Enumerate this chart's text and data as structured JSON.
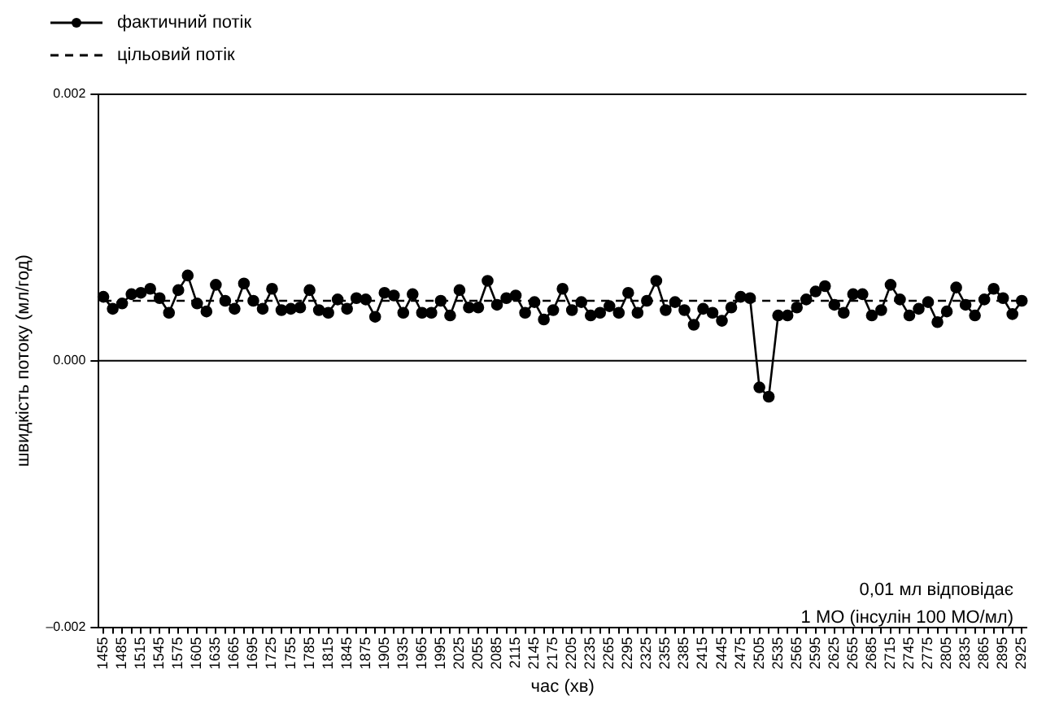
{
  "chart_data": {
    "type": "line",
    "xlabel": "час (хв)",
    "ylabel": "швидкість потоку (мл/год)",
    "categories": [
      "1455",
      null,
      "1485",
      null,
      "1515",
      null,
      "1545",
      null,
      "1575",
      null,
      "1605",
      null,
      "1635",
      null,
      "1665",
      null,
      "1695",
      null,
      "1725",
      null,
      "1755",
      null,
      "1785",
      null,
      "1815",
      null,
      "1845",
      null,
      "1875",
      null,
      "1905",
      null,
      "1935",
      null,
      "1965",
      null,
      "1995",
      null,
      "2025",
      null,
      "2055",
      null,
      "2085",
      null,
      "2115",
      null,
      "2145",
      null,
      "2175",
      null,
      "2205",
      null,
      "2235",
      null,
      "2265",
      null,
      "2295",
      null,
      "2325",
      null,
      "2355",
      null,
      "2385",
      null,
      "2415",
      null,
      "2445",
      null,
      "2475",
      null,
      "2505",
      null,
      "2535",
      null,
      "2565",
      null,
      "2595",
      null,
      "2625",
      null,
      "2655",
      null,
      "2685",
      null,
      "2715",
      null,
      "2745",
      null,
      "2775",
      null,
      "2805",
      null,
      "2835",
      null,
      "2865",
      null,
      "2895",
      null,
      "2925"
    ],
    "series": [
      {
        "name": "фактичний потік",
        "color": "#000000",
        "marker": "circle",
        "line_style": "solid",
        "values": [
          0.00048,
          0.00039,
          0.00043,
          0.0005,
          0.00051,
          0.00054,
          0.00047,
          0.00036,
          0.00053,
          0.00064,
          0.00043,
          0.00037,
          0.00057,
          0.00045,
          0.00039,
          0.00058,
          0.00045,
          0.00039,
          0.00054,
          0.00038,
          0.00039,
          0.0004,
          0.00053,
          0.00038,
          0.00036,
          0.00046,
          0.00039,
          0.00047,
          0.00046,
          0.00033,
          0.00051,
          0.00049,
          0.00036,
          0.0005,
          0.00036,
          0.00036,
          0.00045,
          0.00034,
          0.00053,
          0.0004,
          0.0004,
          0.0006,
          0.00042,
          0.00047,
          0.00049,
          0.00036,
          0.00044,
          0.00031,
          0.00038,
          0.00054,
          0.00038,
          0.00044,
          0.00034,
          0.00036,
          0.00041,
          0.00036,
          0.00051,
          0.00036,
          0.00045,
          0.0006,
          0.00038,
          0.00044,
          0.00038,
          0.00027,
          0.00039,
          0.00036,
          0.0003,
          0.0004,
          0.00048,
          0.00047,
          -0.0002,
          -0.00027,
          0.00034,
          0.00034,
          0.0004,
          0.00046,
          0.00052,
          0.00056,
          0.00042,
          0.00036,
          0.0005,
          0.0005,
          0.00034,
          0.00038,
          0.00057,
          0.00046,
          0.00034,
          0.00039,
          0.00044,
          0.00029,
          0.00037,
          0.00055,
          0.00042,
          0.00034,
          0.00046,
          0.00054,
          0.00047,
          0.00035,
          0.00045
        ]
      },
      {
        "name": "цільовий потік",
        "color": "#000000",
        "marker": "none",
        "line_style": "dashed",
        "values": [
          0.00045,
          0.00045,
          0.00045,
          0.00045,
          0.00045,
          0.00045,
          0.00045,
          0.00045,
          0.00045,
          0.00045,
          0.00045,
          0.00045,
          0.00045,
          0.00045,
          0.00045,
          0.00045,
          0.00045,
          0.00045,
          0.00045,
          0.00045,
          0.00045,
          0.00045,
          0.00045,
          0.00045,
          0.00045,
          0.00045,
          0.00045,
          0.00045,
          0.00045,
          0.00045,
          0.00045,
          0.00045,
          0.00045,
          0.00045,
          0.00045,
          0.00045,
          0.00045,
          0.00045,
          0.00045,
          0.00045,
          0.00045,
          0.00045,
          0.00045,
          0.00045,
          0.00045,
          0.00045,
          0.00045,
          0.00045,
          0.00045,
          0.00045,
          0.00045,
          0.00045,
          0.00045,
          0.00045,
          0.00045,
          0.00045,
          0.00045,
          0.00045,
          0.00045,
          0.00045,
          0.00045,
          0.00045,
          0.00045,
          0.00045,
          0.00045,
          0.00045,
          0.00045,
          0.00045,
          0.00045,
          0.00045,
          0.00045,
          0.00045,
          0.00045,
          0.00045,
          0.00045,
          0.00045,
          0.00045,
          0.00045,
          0.00045,
          0.00045,
          0.00045,
          0.00045,
          0.00045,
          0.00045,
          0.00045,
          0.00045,
          0.00045,
          0.00045,
          0.00045,
          0.00045,
          0.00045,
          0.00045,
          0.00045,
          0.00045,
          0.00045,
          0.00045,
          0.00045,
          0.00045,
          0.00045
        ]
      }
    ],
    "ylim": [
      -0.002,
      0.002
    ],
    "yticks": [
      {
        "value": -0.002,
        "label": "–0.002"
      },
      {
        "value": 0,
        "label": "0.000"
      },
      0.002
    ],
    "ref_lines": [
      {
        "axis": "y",
        "value": 0,
        "color": "#000000"
      }
    ],
    "annotations": [
      "0,01 мл відповідає\n1 МО (інсулін 100 МО/мл)"
    ],
    "grid": false,
    "legend": "top left"
  }
}
